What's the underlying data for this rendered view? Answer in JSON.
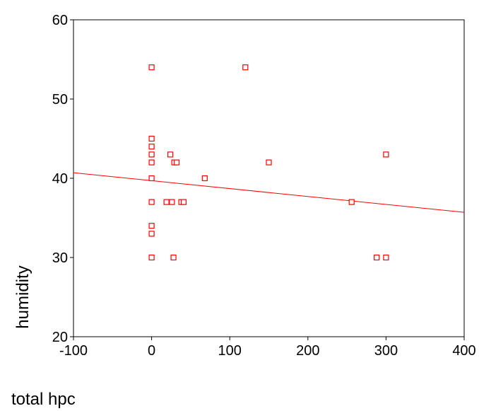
{
  "chart_data": {
    "type": "scatter",
    "xlabel": "total hpc",
    "ylabel": "humidity",
    "xlim": [
      -100,
      400
    ],
    "ylim": [
      20,
      60
    ],
    "x_ticks": [
      -100,
      0,
      100,
      200,
      300,
      400
    ],
    "y_ticks": [
      20,
      30,
      40,
      50,
      60
    ],
    "x_tick_labels": [
      "-100",
      "0",
      "100",
      "200",
      "300",
      "400"
    ],
    "y_tick_labels": [
      "20",
      "30",
      "40",
      "50",
      "60"
    ],
    "grid": false,
    "marker": "open-square",
    "point_color": "#ff0000",
    "line_color": "#ff0000",
    "axis_color": "#000000",
    "points": [
      {
        "x": 0,
        "y": 54
      },
      {
        "x": 0,
        "y": 45
      },
      {
        "x": 0,
        "y": 44
      },
      {
        "x": 0,
        "y": 43
      },
      {
        "x": 0,
        "y": 42
      },
      {
        "x": 0,
        "y": 40
      },
      {
        "x": 0,
        "y": 37
      },
      {
        "x": 0,
        "y": 34
      },
      {
        "x": 0,
        "y": 33
      },
      {
        "x": 0,
        "y": 30
      },
      {
        "x": 120,
        "y": 54
      },
      {
        "x": 24,
        "y": 43
      },
      {
        "x": 29,
        "y": 42
      },
      {
        "x": 32,
        "y": 42
      },
      {
        "x": 150,
        "y": 42
      },
      {
        "x": 68,
        "y": 40
      },
      {
        "x": 19,
        "y": 37
      },
      {
        "x": 26,
        "y": 37
      },
      {
        "x": 38,
        "y": 37
      },
      {
        "x": 41,
        "y": 37
      },
      {
        "x": 256,
        "y": 37
      },
      {
        "x": 28,
        "y": 30
      },
      {
        "x": 288,
        "y": 30
      },
      {
        "x": 300,
        "y": 30
      },
      {
        "x": 300,
        "y": 43
      }
    ],
    "fit_line": {
      "x": [
        -100,
        400
      ],
      "y": [
        40.7,
        35.7
      ]
    }
  }
}
